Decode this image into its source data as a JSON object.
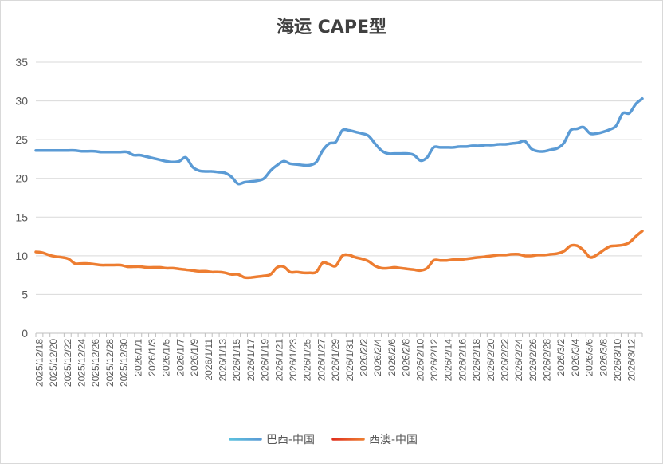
{
  "chart_data": {
    "type": "line",
    "title": "海运 CAPE型",
    "xlabel": "",
    "ylabel": "",
    "ylim": [
      0,
      35
    ],
    "yticks": [
      0,
      5,
      10,
      15,
      20,
      25,
      30,
      35
    ],
    "grid": true,
    "legend_position": "bottom",
    "x_tick_labels": [
      "2025/12/18",
      "2025/12/20",
      "2025/12/22",
      "2025/12/24",
      "2025/12/26",
      "2025/12/28",
      "2025/12/30",
      "2026/1/1",
      "2026/1/3",
      "2026/1/5",
      "2026/1/7",
      "2026/1/9",
      "2026/1/11",
      "2026/1/13",
      "2026/1/15",
      "2026/1/17",
      "2026/1/19",
      "2026/1/21",
      "2026/1/23",
      "2026/1/25",
      "2026/1/27",
      "2026/1/29",
      "2026/1/31",
      "2026/2/2",
      "2026/2/4",
      "2026/2/6",
      "2026/2/8",
      "2026/2/10",
      "2026/2/12",
      "2026/2/14",
      "2026/2/16",
      "2026/2/18",
      "2026/2/20",
      "2026/2/22",
      "2026/2/24",
      "2026/2/26",
      "2026/2/28",
      "2026/3/2",
      "2026/3/4",
      "2026/3/6",
      "2026/3/8",
      "2026/3/10",
      "2026/3/12"
    ],
    "series": [
      {
        "name": "巴西-中国",
        "color": "#5b9bd5",
        "values": [
          23.6,
          23.6,
          23.6,
          23.6,
          23.6,
          23.6,
          23.6,
          23.5,
          23.5,
          23.5,
          23.4,
          23.4,
          23.4,
          23.4,
          23.4,
          23.0,
          23.0,
          22.8,
          22.6,
          22.4,
          22.2,
          22.1,
          22.2,
          22.7,
          21.5,
          21.0,
          20.9,
          20.9,
          20.8,
          20.7,
          20.2,
          19.3,
          19.5,
          19.6,
          19.7,
          20.0,
          21.0,
          21.7,
          22.2,
          21.9,
          21.8,
          21.7,
          21.7,
          22.1,
          23.6,
          24.5,
          24.7,
          26.2,
          26.2,
          26.0,
          25.8,
          25.5,
          24.5,
          23.6,
          23.2,
          23.2,
          23.2,
          23.2,
          23.0,
          22.3,
          22.7,
          24.0,
          24.0,
          24.0,
          24.0,
          24.1,
          24.1,
          24.2,
          24.2,
          24.3,
          24.3,
          24.4,
          24.4,
          24.5,
          24.6,
          24.8,
          23.8,
          23.5,
          23.5,
          23.7,
          23.9,
          24.6,
          26.2,
          26.4,
          26.6,
          25.8,
          25.8,
          26.0,
          26.3,
          26.8,
          28.4,
          28.4,
          29.6,
          30.3
        ]
      },
      {
        "name": "西澳-中国",
        "color": "#ed7d31",
        "values": [
          10.5,
          10.4,
          10.1,
          9.9,
          9.8,
          9.6,
          9.0,
          9.0,
          9.0,
          8.9,
          8.8,
          8.8,
          8.8,
          8.8,
          8.6,
          8.6,
          8.6,
          8.5,
          8.5,
          8.5,
          8.4,
          8.4,
          8.3,
          8.2,
          8.1,
          8.0,
          8.0,
          7.9,
          7.9,
          7.8,
          7.6,
          7.6,
          7.2,
          7.2,
          7.3,
          7.4,
          7.6,
          8.5,
          8.6,
          7.9,
          7.9,
          7.8,
          7.8,
          7.9,
          9.1,
          8.9,
          8.7,
          10.0,
          10.1,
          9.8,
          9.6,
          9.3,
          8.7,
          8.4,
          8.4,
          8.5,
          8.4,
          8.3,
          8.2,
          8.1,
          8.4,
          9.4,
          9.4,
          9.4,
          9.5,
          9.5,
          9.6,
          9.7,
          9.8,
          9.9,
          10.0,
          10.1,
          10.1,
          10.2,
          10.2,
          10.0,
          10.0,
          10.1,
          10.1,
          10.2,
          10.3,
          10.6,
          11.3,
          11.3,
          10.7,
          9.8,
          10.1,
          10.7,
          11.2,
          11.3,
          11.4,
          11.7,
          12.5,
          13.2
        ]
      }
    ]
  }
}
